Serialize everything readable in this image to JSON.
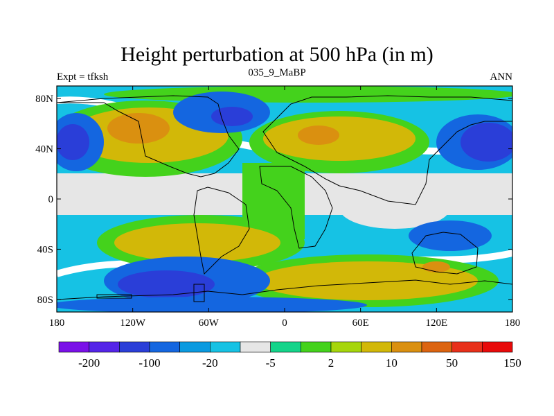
{
  "chart_data": {
    "type": "contour_map",
    "title": "Height perturbation at 500 hPa (in m)",
    "left_string": "Expt = tfksh",
    "center_string": "035_9_MaBP",
    "right_string": "ANN",
    "x_ticks": [
      "180",
      "120W",
      "60W",
      "0",
      "60E",
      "120E",
      "180"
    ],
    "y_ticks": [
      "80N",
      "40N",
      "0",
      "40S",
      "80S"
    ],
    "colorbar_labels": [
      "-200",
      "-100",
      "-20",
      "-5",
      "2",
      "10",
      "50",
      "150"
    ],
    "colorbar_colors": [
      "#7a10e8",
      "#5424e8",
      "#2a3ed8",
      "#1466e0",
      "#0a9ae0",
      "#16c2e4",
      "#e6e6e6",
      "#14d48a",
      "#44d21c",
      "#a6d60c",
      "#d2b808",
      "#da9010",
      "#dc6410",
      "#e8301a",
      "#e80a0a"
    ],
    "colors": {
      "land_outline": "#000000",
      "white_band": "#ffffff"
    }
  }
}
